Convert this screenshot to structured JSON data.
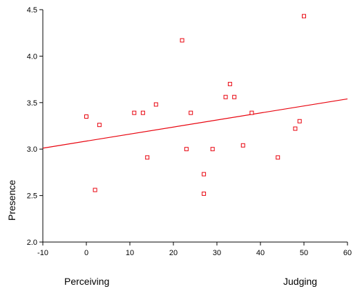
{
  "chart_data": {
    "type": "scatter",
    "title": "",
    "xlabel": "",
    "ylabel": "Presence",
    "xlim": [
      -10,
      60
    ],
    "ylim": [
      2.0,
      4.5
    ],
    "x_ticks": [
      "-10",
      "0",
      "10",
      "20",
      "30",
      "40",
      "50",
      "60"
    ],
    "y_ticks": [
      "2.0",
      "2.5",
      "3.0",
      "3.5",
      "4.0",
      "4.5"
    ],
    "x_extreme_labels": {
      "left": "Perceiving",
      "right": "Judging"
    },
    "grid": false,
    "marker_color": "#e8000b",
    "line_color": "#e8000b",
    "points": [
      [
        0,
        3.35
      ],
      [
        2,
        2.56
      ],
      [
        3,
        3.26
      ],
      [
        11,
        3.39
      ],
      [
        13,
        3.39
      ],
      [
        14,
        2.91
      ],
      [
        16,
        3.48
      ],
      [
        22,
        4.17
      ],
      [
        23,
        3.0
      ],
      [
        24,
        3.39
      ],
      [
        27,
        2.73
      ],
      [
        27,
        2.52
      ],
      [
        29,
        3.0
      ],
      [
        32,
        3.56
      ],
      [
        33,
        3.7
      ],
      [
        34,
        3.56
      ],
      [
        36,
        3.04
      ],
      [
        38,
        3.39
      ],
      [
        44,
        2.91
      ],
      [
        48,
        3.22
      ],
      [
        49,
        3.3
      ],
      [
        50,
        4.43
      ]
    ],
    "fit_line": {
      "x": [
        -10,
        60
      ],
      "y": [
        3.01,
        3.54
      ]
    }
  }
}
